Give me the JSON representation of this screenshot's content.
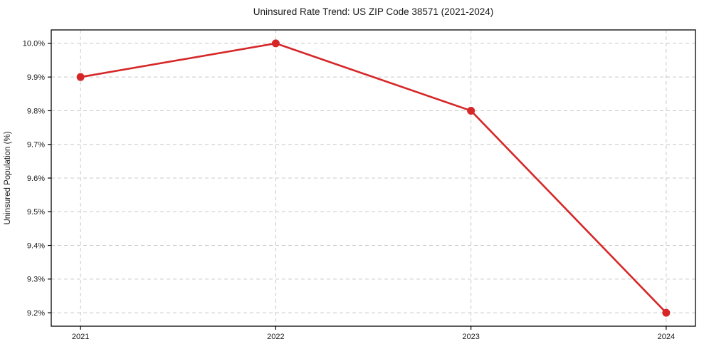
{
  "chart_data": {
    "type": "line",
    "title": "Uninsured Rate Trend: US ZIP Code 38571 (2021-2024)",
    "xlabel": "",
    "ylabel": "Uninsured Population (%)",
    "x": [
      2021,
      2022,
      2023,
      2024
    ],
    "x_tick_labels": [
      "2021",
      "2022",
      "2023",
      "2024"
    ],
    "y": [
      9.9,
      10.0,
      9.8,
      9.2
    ],
    "y_ticks": [
      9.2,
      9.3,
      9.4,
      9.5,
      9.6,
      9.7,
      9.8,
      9.9,
      10.0
    ],
    "y_tick_labels": [
      "9.2%",
      "9.3%",
      "9.4%",
      "9.5%",
      "9.6%",
      "9.7%",
      "9.8%",
      "9.9%",
      "10.0%"
    ],
    "xlim": [
      2020.85,
      2024.15
    ],
    "ylim": [
      9.16,
      10.04
    ],
    "grid": true,
    "grid_style": "dashed",
    "legend_position": "none",
    "line_color": "#d62728",
    "marker": "circle",
    "grid_color": "#c9c9c9",
    "spine_color": "#000000",
    "text_color": "#1a1a1a"
  }
}
